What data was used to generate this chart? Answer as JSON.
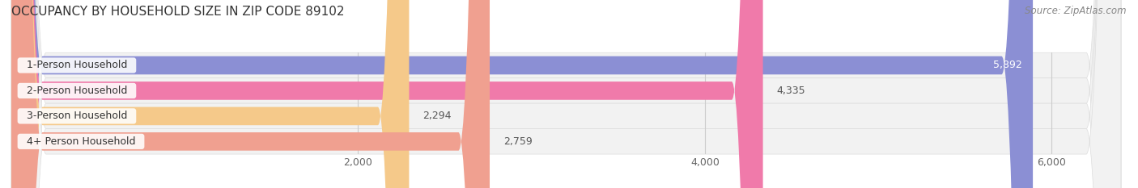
{
  "title": "OCCUPANCY BY HOUSEHOLD SIZE IN ZIP CODE 89102",
  "source": "Source: ZipAtlas.com",
  "categories": [
    "1-Person Household",
    "2-Person Household",
    "3-Person Household",
    "4+ Person Household"
  ],
  "values": [
    5892,
    4335,
    2294,
    2759
  ],
  "bar_colors": [
    "#8b8fd4",
    "#f07aaa",
    "#f5c98a",
    "#f0a090"
  ],
  "background_color": "#ffffff",
  "row_bg_color": "#efefef",
  "xlim": [
    0,
    6400
  ],
  "xticks": [
    2000,
    4000,
    6000
  ],
  "xtick_labels": [
    "2,000",
    "4,000",
    "6,000"
  ],
  "value_label_inside": [
    true,
    false,
    false,
    false
  ],
  "title_fontsize": 11,
  "tick_fontsize": 9,
  "bar_label_fontsize": 9,
  "source_fontsize": 8.5
}
